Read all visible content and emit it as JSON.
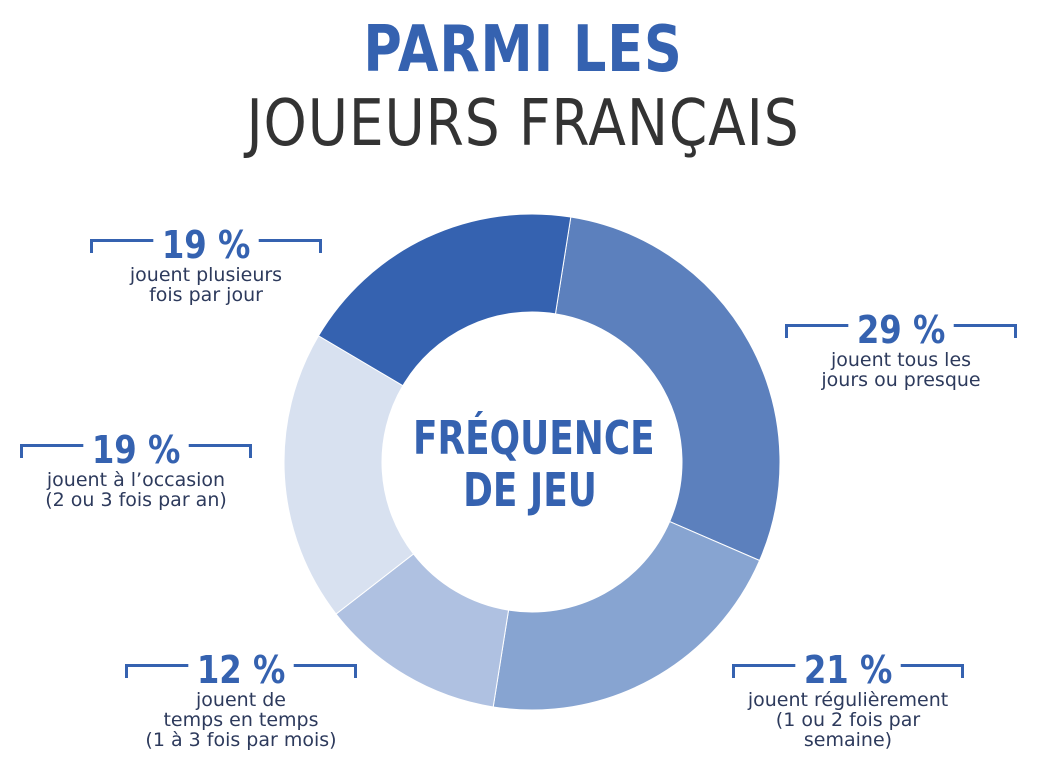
{
  "header": {
    "title_line1": "PARMI LES",
    "title_line2": "JOUEURS FRANÇAIS"
  },
  "chart_data": {
    "type": "pie",
    "title": "FRÉQUENCE DE JEU",
    "center_label_line1": "FRÉQUENCE",
    "center_label_line2": "DE JEU",
    "slices": [
      {
        "value": 29,
        "label": "29 %",
        "description": "jouent tous les\njours ou presque",
        "color": "#5c80bd"
      },
      {
        "value": 21,
        "label": "21 %",
        "description": "jouent régulièrement\n(1 ou 2 fois par semaine)",
        "color": "#87a4d1"
      },
      {
        "value": 12,
        "label": "12 %",
        "description": "jouent de\ntemps en temps\n(1 à 3 fois par mois)",
        "color": "#afc1e1"
      },
      {
        "value": 19,
        "label": "19 %",
        "description": "jouent à l’occasion\n(2 ou 3 fois par an)",
        "color": "#d8e1f0"
      },
      {
        "value": 19,
        "label": "19 %",
        "description": "jouent plusieurs\nfois par jour",
        "color": "#3562b0"
      }
    ]
  }
}
